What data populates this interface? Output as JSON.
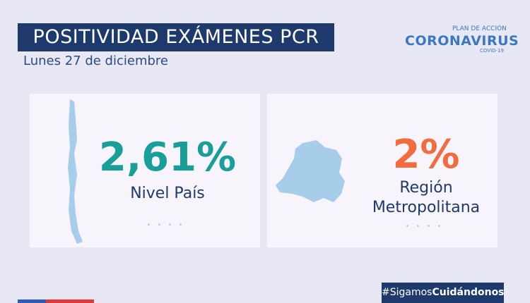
{
  "header": {
    "title": "POSITIVIDAD EXÁMENES PCR",
    "subtitle": "Lunes 27 de diciembre"
  },
  "logo": {
    "top": "PLAN DE ACCIÓN",
    "main": "CORONAVIRUS",
    "bottom": "COVID-19"
  },
  "cards": [
    {
      "value": "2,61%",
      "label_lines": [
        "Nivel País"
      ]
    },
    {
      "value": "2%",
      "label_lines": [
        "Región",
        "Metropolitana"
      ]
    }
  ],
  "hashtag": {
    "prefix": "#Sigamos",
    "emphasis": "Cuidándonos"
  }
}
